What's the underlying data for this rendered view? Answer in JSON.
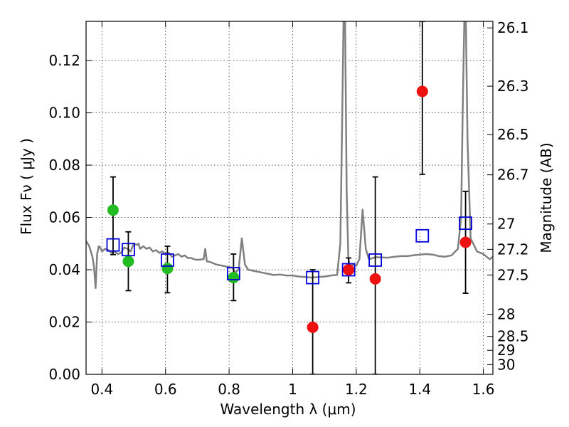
{
  "chart_data": {
    "type": "scatter",
    "title": "",
    "xlabel": "Wavelength  λ (μm)",
    "ylabel": "Flux  Fν  ( μJy )",
    "ylabel_right": "Magnitude (AB)",
    "xlim": [
      0.35,
      1.63
    ],
    "ylim": [
      0.0,
      0.135
    ],
    "grid": true,
    "x_ticks": [
      0.4,
      0.6,
      0.8,
      1.0,
      1.2,
      1.4,
      1.6
    ],
    "x_tick_labels": [
      "0.4",
      "0.6",
      "0.8",
      "1",
      "1.2",
      "1.4",
      "1.6"
    ],
    "y_ticks": [
      0.0,
      0.02,
      0.04,
      0.06,
      0.08,
      0.1,
      0.12
    ],
    "y_tick_labels": [
      "0.00",
      "0.02",
      "0.04",
      "0.06",
      "0.08",
      "0.10",
      "0.12"
    ],
    "right_ticks": [
      {
        "flux": 0.1325,
        "label": "26.1"
      },
      {
        "flux": 0.1102,
        "label": "26.3"
      },
      {
        "flux": 0.0917,
        "label": "26.5"
      },
      {
        "flux": 0.0763,
        "label": "26.7"
      },
      {
        "flux": 0.0575,
        "label": "27"
      },
      {
        "flux": 0.0478,
        "label": "27.2"
      },
      {
        "flux": 0.038,
        "label": "27.5"
      },
      {
        "flux": 0.023,
        "label": "28"
      },
      {
        "flux": 0.0145,
        "label": "28.5"
      },
      {
        "flux": 0.0092,
        "label": "29"
      },
      {
        "flux": 0.0037,
        "label": "30"
      }
    ],
    "series": [
      {
        "marker": "circle",
        "color": "#22bb22",
        "points": [
          {
            "x": 0.435,
            "y": 0.0628,
            "err_lo": 0.0458,
            "err_hi": 0.0755
          },
          {
            "x": 0.483,
            "y": 0.0432,
            "err_lo": 0.032,
            "err_hi": 0.0545
          },
          {
            "x": 0.606,
            "y": 0.0405,
            "err_lo": 0.0312,
            "err_hi": 0.049
          },
          {
            "x": 0.814,
            "y": 0.037,
            "err_lo": 0.0282,
            "err_hi": 0.046
          }
        ]
      },
      {
        "marker": "circle",
        "color": "#ee1111",
        "points": [
          {
            "x": 1.063,
            "y": 0.018,
            "err_lo": 0.0,
            "err_hi": 0.04
          },
          {
            "x": 1.176,
            "y": 0.04,
            "err_lo": 0.035,
            "err_hi": 0.0445
          },
          {
            "x": 1.26,
            "y": 0.0365,
            "err_lo": 0.0,
            "err_hi": 0.0755
          },
          {
            "x": 1.408,
            "y": 0.1082,
            "err_lo": 0.0765,
            "err_hi": 0.135
          },
          {
            "x": 1.544,
            "y": 0.0505,
            "err_lo": 0.031,
            "err_hi": 0.07
          }
        ]
      },
      {
        "marker": "open-square",
        "color": "#0000dd",
        "points": [
          {
            "x": 0.435,
            "y": 0.0495
          },
          {
            "x": 0.483,
            "y": 0.0477
          },
          {
            "x": 0.606,
            "y": 0.0437
          },
          {
            "x": 0.814,
            "y": 0.0385
          },
          {
            "x": 1.063,
            "y": 0.037
          },
          {
            "x": 1.176,
            "y": 0.04
          },
          {
            "x": 1.26,
            "y": 0.0437
          },
          {
            "x": 1.408,
            "y": 0.053
          },
          {
            "x": 1.544,
            "y": 0.0578
          }
        ]
      },
      {
        "type": "line",
        "color": "#808080",
        "x": [
          0.35,
          0.36,
          0.365,
          0.37,
          0.375,
          0.38,
          0.385,
          0.39,
          0.395,
          0.4,
          0.41,
          0.42,
          0.43,
          0.44,
          0.45,
          0.46,
          0.47,
          0.48,
          0.49,
          0.5,
          0.51,
          0.515,
          0.52,
          0.53,
          0.54,
          0.55,
          0.56,
          0.57,
          0.58,
          0.59,
          0.6,
          0.61,
          0.62,
          0.63,
          0.64,
          0.65,
          0.66,
          0.67,
          0.68,
          0.69,
          0.7,
          0.72,
          0.725,
          0.73,
          0.74,
          0.76,
          0.78,
          0.8,
          0.81,
          0.82,
          0.83,
          0.84,
          0.85,
          0.86,
          0.88,
          0.9,
          0.92,
          0.94,
          0.96,
          0.98,
          1.0,
          1.02,
          1.04,
          1.06,
          1.08,
          1.1,
          1.12,
          1.14,
          1.15,
          1.155,
          1.16,
          1.165,
          1.17,
          1.175,
          1.18,
          1.19,
          1.2,
          1.21,
          1.22,
          1.23,
          1.24,
          1.26,
          1.28,
          1.3,
          1.32,
          1.34,
          1.36,
          1.38,
          1.4,
          1.42,
          1.44,
          1.46,
          1.48,
          1.5,
          1.52,
          1.53,
          1.535,
          1.54,
          1.545,
          1.55,
          1.56,
          1.58,
          1.6,
          1.62,
          1.63
        ],
        "y": [
          0.051,
          0.049,
          0.047,
          0.045,
          0.041,
          0.033,
          0.046,
          0.049,
          0.0485,
          0.047,
          0.048,
          0.0475,
          0.0465,
          0.047,
          0.046,
          0.0465,
          0.0485,
          0.048,
          0.047,
          0.05,
          0.0495,
          0.05,
          0.048,
          0.049,
          0.048,
          0.0485,
          0.047,
          0.0475,
          0.0465,
          0.047,
          0.046,
          0.0465,
          0.045,
          0.0455,
          0.046,
          0.045,
          0.0455,
          0.0445,
          0.0445,
          0.044,
          0.0438,
          0.044,
          0.048,
          0.0432,
          0.043,
          0.042,
          0.0415,
          0.041,
          0.0408,
          0.039,
          0.04,
          0.052,
          0.042,
          0.04,
          0.0395,
          0.039,
          0.0385,
          0.038,
          0.0382,
          0.0378,
          0.0378,
          0.0374,
          0.0372,
          0.037,
          0.0372,
          0.0374,
          0.0378,
          0.038,
          0.05,
          0.09,
          0.135,
          0.135,
          0.07,
          0.045,
          0.041,
          0.042,
          0.0415,
          0.044,
          0.063,
          0.048,
          0.044,
          0.0448,
          0.0447,
          0.0446,
          0.045,
          0.0452,
          0.0452,
          0.0455,
          0.0458,
          0.046,
          0.0458,
          0.0452,
          0.045,
          0.0455,
          0.048,
          0.06,
          0.1,
          0.135,
          0.135,
          0.09,
          0.052,
          0.047,
          0.046,
          0.044,
          0.045
        ]
      }
    ]
  }
}
